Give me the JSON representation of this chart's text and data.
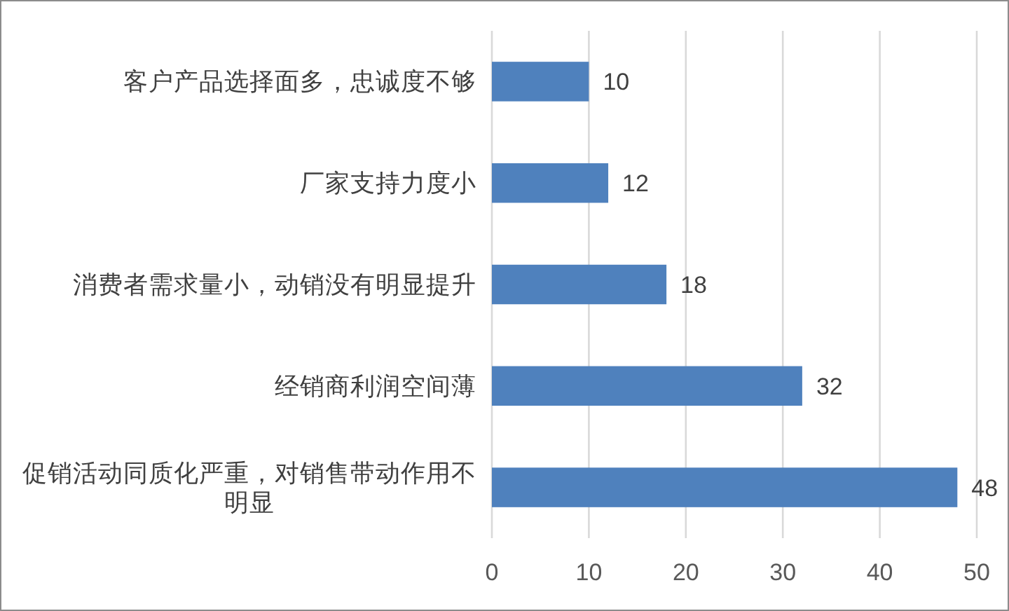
{
  "chart_data": {
    "type": "bar",
    "orientation": "horizontal",
    "categories": [
      "客户产品选择面多，忠诚度不够",
      "厂家支持力度小",
      "消费者需求量小，动销没有明显提升",
      "经销商利润空间薄",
      "促销活动同质化严重，对销售带动作用不明显"
    ],
    "values": [
      10,
      12,
      18,
      32,
      48
    ],
    "color": "#4f81bd",
    "xlim": [
      0,
      50
    ],
    "xticks": [
      0,
      10,
      20,
      30,
      40,
      50
    ],
    "grid": "x",
    "data_labels": true
  }
}
